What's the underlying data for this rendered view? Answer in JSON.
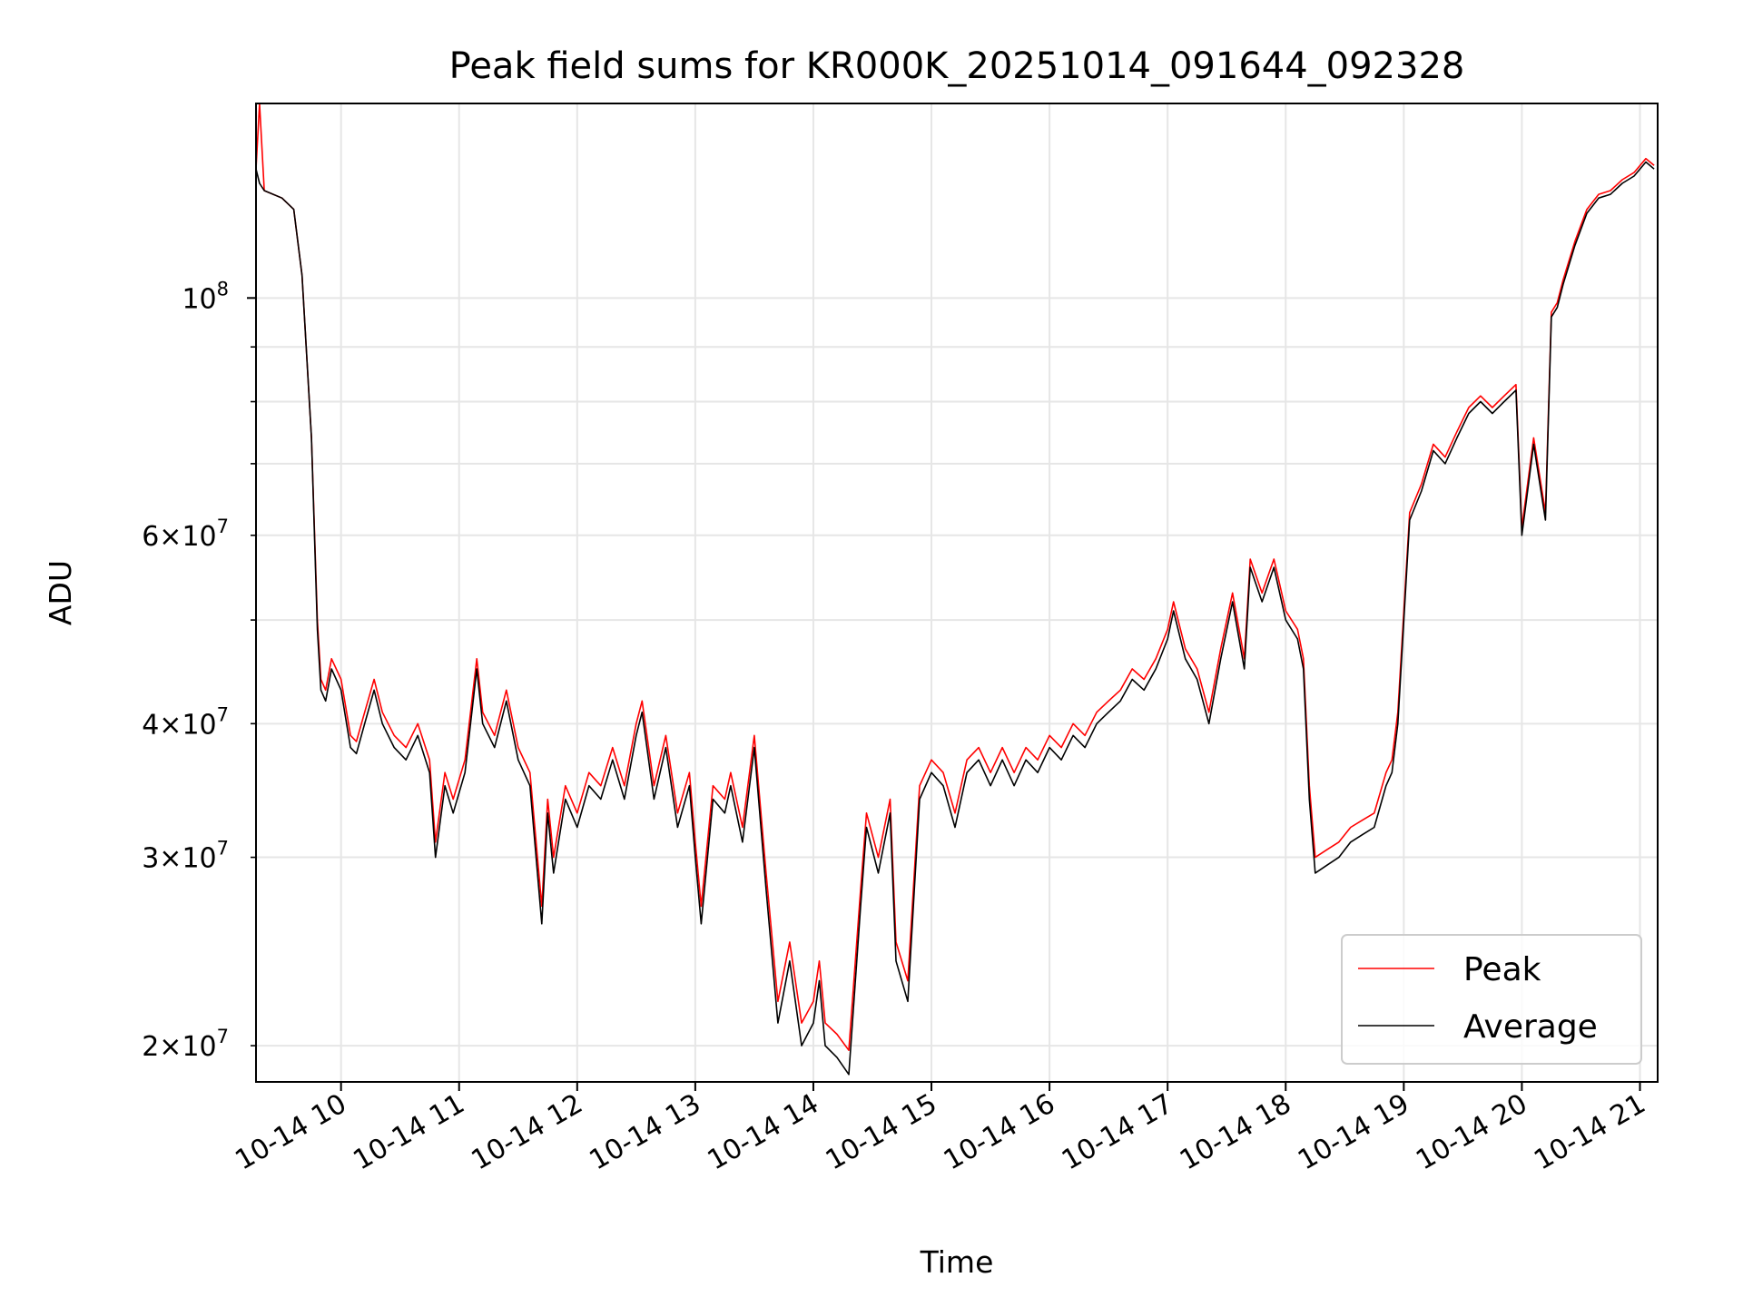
{
  "chart_data": {
    "type": "line",
    "title": "Peak field sums for KR000K_20251014_091644_092328",
    "xlabel": "Time",
    "ylabel": "ADU",
    "yscale": "log",
    "grid": true,
    "legend_position": "lower-right",
    "xlim": [
      9.28,
      21.15
    ],
    "ylim": [
      18500000,
      152000000
    ],
    "x_ticks": [
      10,
      11,
      12,
      13,
      14,
      15,
      16,
      17,
      18,
      19,
      20,
      21
    ],
    "x_tick_labels": [
      "10-14 10",
      "10-14 11",
      "10-14 12",
      "10-14 13",
      "10-14 14",
      "10-14 15",
      "10-14 16",
      "10-14 17",
      "10-14 18",
      "10-14 19",
      "10-14 20",
      "10-14 21"
    ],
    "y_major_ticks": [
      100000000
    ],
    "y_major_tick_labels": [
      "10"
    ],
    "y_major_tick_exponents": [
      "8"
    ],
    "y_minor_ticks": [
      20000000,
      30000000,
      40000000,
      50000000,
      60000000,
      70000000,
      80000000,
      90000000
    ],
    "y_minor_labeled": [
      20000000,
      30000000,
      40000000,
      60000000
    ],
    "y_minor_tick_labels": [
      "2×10",
      "3×10",
      "4×10",
      "6×10"
    ],
    "y_minor_tick_exponents": [
      "7",
      "7",
      "7",
      "7"
    ],
    "series": [
      {
        "name": "Peak",
        "color": "#ff0000"
      },
      {
        "name": "Average",
        "color": "#000000"
      }
    ],
    "x": [
      9.28,
      9.31,
      9.35,
      9.5,
      9.6,
      9.67,
      9.75,
      9.8,
      9.83,
      9.87,
      9.92,
      10.0,
      10.08,
      10.13,
      10.2,
      10.28,
      10.35,
      10.45,
      10.55,
      10.65,
      10.75,
      10.8,
      10.88,
      10.95,
      11.05,
      11.15,
      11.2,
      11.3,
      11.4,
      11.5,
      11.6,
      11.7,
      11.75,
      11.8,
      11.9,
      12.0,
      12.1,
      12.2,
      12.3,
      12.4,
      12.5,
      12.55,
      12.65,
      12.75,
      12.85,
      12.95,
      13.0,
      13.05,
      13.15,
      13.25,
      13.3,
      13.4,
      13.5,
      13.6,
      13.7,
      13.8,
      13.9,
      14.0,
      14.05,
      14.1,
      14.2,
      14.3,
      14.4,
      14.45,
      14.55,
      14.65,
      14.7,
      14.8,
      14.9,
      15.0,
      15.1,
      15.2,
      15.3,
      15.4,
      15.5,
      15.6,
      15.7,
      15.8,
      15.9,
      16.0,
      16.1,
      16.2,
      16.3,
      16.4,
      16.5,
      16.6,
      16.7,
      16.8,
      16.9,
      17.0,
      17.05,
      17.15,
      17.25,
      17.35,
      17.45,
      17.55,
      17.65,
      17.7,
      17.8,
      17.9,
      18.0,
      18.1,
      18.15,
      18.2,
      18.25,
      18.35,
      18.45,
      18.55,
      18.65,
      18.75,
      18.85,
      18.9,
      18.95,
      19.05,
      19.15,
      19.25,
      19.35,
      19.45,
      19.55,
      19.65,
      19.75,
      19.85,
      19.95,
      20.0,
      20.1,
      20.2,
      20.25,
      20.3,
      20.35,
      20.45,
      20.55,
      20.65,
      20.75,
      20.85,
      20.95,
      21.05,
      21.12
    ],
    "average": [
      132000000,
      128000000,
      126000000,
      124000000,
      121000000,
      105000000,
      74000000,
      49000000,
      43000000,
      42000000,
      45000000,
      43000000,
      38000000,
      37500000,
      40000000,
      43000000,
      40000000,
      38000000,
      37000000,
      39000000,
      36000000,
      30000000,
      35000000,
      33000000,
      36000000,
      45000000,
      40000000,
      38000000,
      42000000,
      37000000,
      35000000,
      26000000,
      33000000,
      29000000,
      34000000,
      32000000,
      35000000,
      34000000,
      37000000,
      34000000,
      39000000,
      41000000,
      34000000,
      38000000,
      32000000,
      35000000,
      30000000,
      26000000,
      34000000,
      33000000,
      35000000,
      31000000,
      38000000,
      28000000,
      21000000,
      24000000,
      20000000,
      21000000,
      23000000,
      20000000,
      19500000,
      18800000,
      27000000,
      32000000,
      29000000,
      33000000,
      24000000,
      22000000,
      34000000,
      36000000,
      35000000,
      32000000,
      36000000,
      37000000,
      35000000,
      37000000,
      35000000,
      37000000,
      36000000,
      38000000,
      37000000,
      39000000,
      38000000,
      40000000,
      41000000,
      42000000,
      44000000,
      43000000,
      45000000,
      48000000,
      51000000,
      46000000,
      44000000,
      40000000,
      46000000,
      52000000,
      45000000,
      56000000,
      52000000,
      56000000,
      50000000,
      48000000,
      45000000,
      34000000,
      29000000,
      29500000,
      30000000,
      31000000,
      31500000,
      32000000,
      35000000,
      36000000,
      40000000,
      62000000,
      66000000,
      72000000,
      70000000,
      74000000,
      78000000,
      80000000,
      78000000,
      80000000,
      82000000,
      60000000,
      73000000,
      62000000,
      96000000,
      98000000,
      103000000,
      112000000,
      120000000,
      124000000,
      125000000,
      128000000,
      130000000,
      134000000,
      132000000
    ],
    "peak": [
      132000000,
      152000000,
      126000000,
      124000000,
      121000000,
      105000000,
      74000000,
      50000000,
      44000000,
      43000000,
      46000000,
      44000000,
      39000000,
      38500000,
      41000000,
      44000000,
      41000000,
      39000000,
      38000000,
      40000000,
      37000000,
      31000000,
      36000000,
      34000000,
      37000000,
      46000000,
      41000000,
      39000000,
      43000000,
      38000000,
      36000000,
      27000000,
      34000000,
      30000000,
      35000000,
      33000000,
      36000000,
      35000000,
      38000000,
      35000000,
      40000000,
      42000000,
      35000000,
      39000000,
      33000000,
      36000000,
      31000000,
      27000000,
      35000000,
      34000000,
      36000000,
      32000000,
      39000000,
      29000000,
      22000000,
      25000000,
      21000000,
      22000000,
      24000000,
      21000000,
      20500000,
      19800000,
      28000000,
      33000000,
      30000000,
      34000000,
      25000000,
      23000000,
      35000000,
      37000000,
      36000000,
      33000000,
      37000000,
      38000000,
      36000000,
      38000000,
      36000000,
      38000000,
      37000000,
      39000000,
      38000000,
      40000000,
      39000000,
      41000000,
      42000000,
      43000000,
      45000000,
      44000000,
      46000000,
      49000000,
      52000000,
      47000000,
      45000000,
      41000000,
      47000000,
      53000000,
      46000000,
      57000000,
      53000000,
      57000000,
      51000000,
      49000000,
      46000000,
      35000000,
      30000000,
      30500000,
      31000000,
      32000000,
      32500000,
      33000000,
      36000000,
      37000000,
      41000000,
      63000000,
      67000000,
      73000000,
      71000000,
      75000000,
      79000000,
      81000000,
      79000000,
      81000000,
      83000000,
      61000000,
      74000000,
      63000000,
      97000000,
      99000000,
      104000000,
      113000000,
      121000000,
      125000000,
      126000000,
      129000000,
      131000000,
      135000000,
      133000000
    ]
  }
}
